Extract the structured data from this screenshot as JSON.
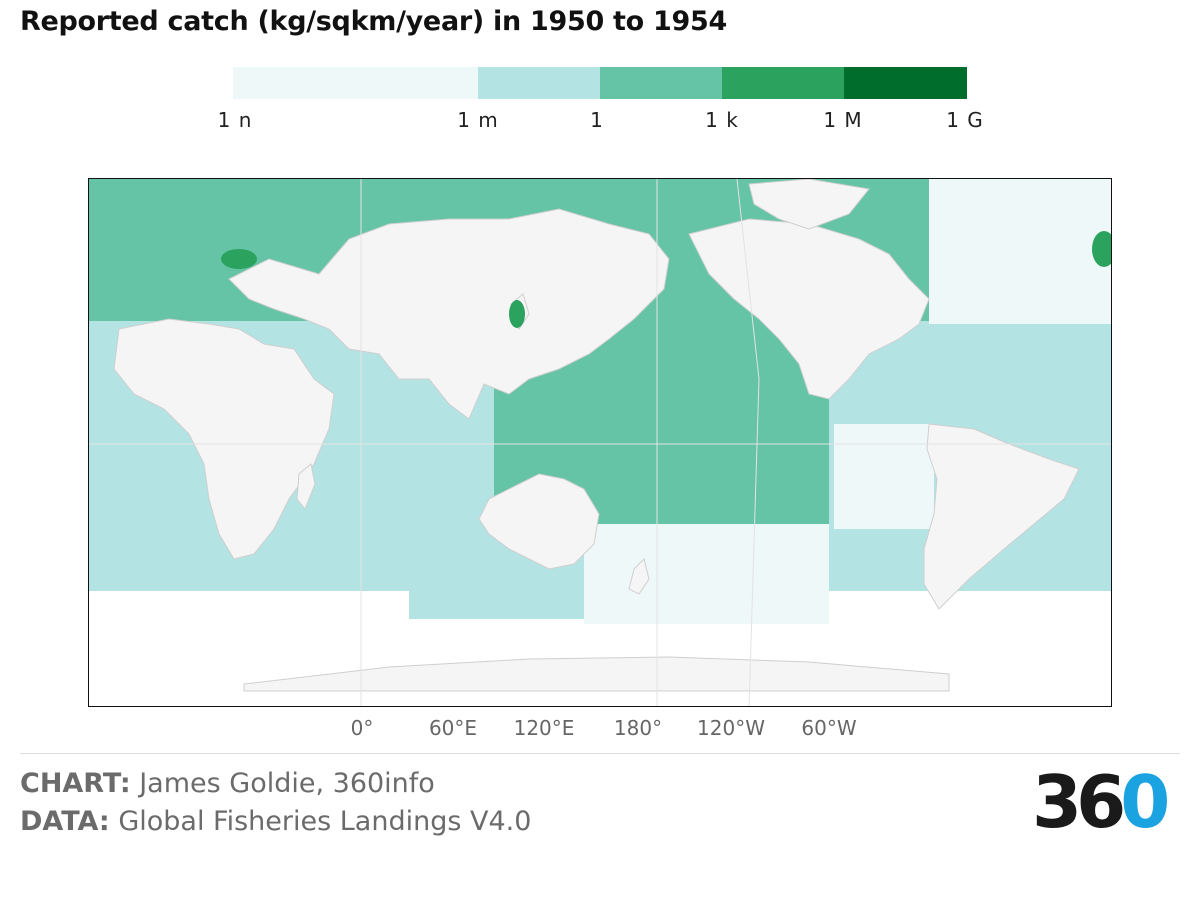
{
  "title": "Reported catch (kg/sqkm/year) in 1950 to 1954",
  "legend": {
    "bins": [
      {
        "color": "#eef8f8"
      },
      {
        "color": "#b3e3e2"
      },
      {
        "color": "#65c3a6"
      },
      {
        "color": "#2ca25f"
      },
      {
        "color": "#006d2c"
      }
    ],
    "ticks": [
      "1 n",
      "1 m",
      "1",
      "1 k",
      "1 M",
      "1 G"
    ]
  },
  "map": {
    "longitude_labels": [
      "0°",
      "60°E",
      "120°E",
      "180°",
      "120°W",
      "60°W"
    ],
    "land_color": "#f5f5f5",
    "border_color": "#cfcfcf"
  },
  "credits": {
    "chart_label": "CHART:",
    "chart_value": "James Goldie, 360info",
    "data_label": "DATA:",
    "data_value": "Global Fisheries Landings V4.0"
  },
  "logo": {
    "text": "360",
    "accent": "#1aa3e0"
  }
}
